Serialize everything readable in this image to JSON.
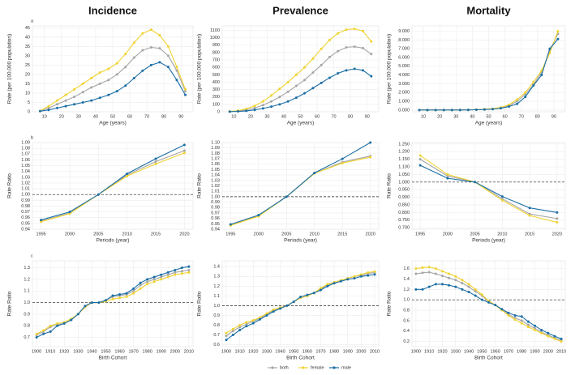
{
  "chart_data": [
    {
      "type": "line",
      "title": "Incidence",
      "panel_label": "a",
      "xlabel": "Age (years)",
      "ylabel": "Rate (per 100,000 population)",
      "x": [
        7.5,
        12.5,
        17.5,
        22.5,
        27.5,
        32.5,
        37.5,
        42.5,
        47.5,
        52.5,
        57.5,
        62.5,
        67.5,
        72.5,
        77.5,
        82.5,
        87.5,
        92.5
      ],
      "xlim": [
        3,
        97
      ],
      "xticks": [
        10,
        20,
        30,
        40,
        50,
        60,
        70,
        80,
        90
      ],
      "ylim": [
        0,
        46
      ],
      "yticks": [
        0,
        5,
        10,
        15,
        20,
        25,
        30,
        35,
        40,
        45
      ],
      "series": [
        {
          "name": "both",
          "color": "#a6a6a6",
          "values": [
            0.5,
            2,
            4,
            6,
            8,
            10.5,
            13,
            15,
            17,
            20,
            24,
            29,
            33,
            34.5,
            34,
            30,
            22,
            11
          ]
        },
        {
          "name": "female",
          "color": "#f0d332",
          "values": [
            0.5,
            3,
            6,
            9,
            12,
            15,
            18,
            21,
            23,
            26,
            31,
            37,
            42,
            44,
            41,
            35,
            24,
            12
          ]
        },
        {
          "name": "male",
          "color": "#1b6ea5",
          "values": [
            0.3,
            1,
            2,
            3,
            4,
            5,
            6,
            7.5,
            9,
            11,
            14,
            18,
            22,
            25,
            26.5,
            24,
            17,
            9
          ]
        }
      ]
    },
    {
      "type": "line",
      "title": "Prevalence",
      "xlabel": "Age (years)",
      "ylabel": "Rate (per 100,000 population)",
      "x": [
        7.5,
        12.5,
        17.5,
        22.5,
        27.5,
        32.5,
        37.5,
        42.5,
        47.5,
        52.5,
        57.5,
        62.5,
        67.5,
        72.5,
        77.5,
        82.5,
        87.5,
        92.5
      ],
      "xlim": [
        3,
        97
      ],
      "xticks": [
        10,
        20,
        30,
        40,
        50,
        60,
        70,
        80,
        90
      ],
      "ylim": [
        0,
        1160
      ],
      "yticks": [
        0,
        100,
        200,
        300,
        400,
        500,
        600,
        700,
        800,
        900,
        1000,
        1100
      ],
      "series": [
        {
          "name": "both",
          "color": "#a6a6a6",
          "values": [
            3,
            10,
            25,
            50,
            90,
            140,
            200,
            270,
            350,
            430,
            530,
            630,
            740,
            820,
            870,
            880,
            860,
            780
          ]
        },
        {
          "name": "female",
          "color": "#f0d332",
          "values": [
            5,
            15,
            40,
            80,
            140,
            220,
            310,
            400,
            500,
            600,
            720,
            850,
            970,
            1060,
            1110,
            1120,
            1090,
            950
          ]
        },
        {
          "name": "male",
          "color": "#1b6ea5",
          "values": [
            2,
            5,
            12,
            25,
            45,
            70,
            100,
            140,
            190,
            250,
            320,
            390,
            460,
            520,
            560,
            580,
            560,
            480
          ]
        }
      ]
    },
    {
      "type": "line",
      "title": "Mortality",
      "xlabel": "Age (years)",
      "ylabel": "Rate (per 100,000 population)",
      "x": [
        7.5,
        12.5,
        17.5,
        22.5,
        27.5,
        32.5,
        37.5,
        42.5,
        47.5,
        52.5,
        57.5,
        62.5,
        67.5,
        72.5,
        77.5,
        82.5,
        87.5,
        92.5
      ],
      "xlim": [
        3,
        97
      ],
      "xticks": [
        10,
        20,
        30,
        40,
        50,
        60,
        70,
        80,
        90
      ],
      "ylim": [
        -0.2,
        9.6
      ],
      "yticks": [
        {
          "value": 0,
          "label": "0.000"
        },
        {
          "value": 1,
          "label": "1.000"
        },
        {
          "value": 2,
          "label": "2.000"
        },
        {
          "value": 3,
          "label": "3.000"
        },
        {
          "value": 4,
          "label": "4.000"
        },
        {
          "value": 5,
          "label": "5.000"
        },
        {
          "value": 6,
          "label": "6.000"
        },
        {
          "value": 7,
          "label": "7.000"
        },
        {
          "value": 8,
          "label": "8.000"
        },
        {
          "value": 9,
          "label": "9.000"
        }
      ],
      "series": [
        {
          "name": "both",
          "color": "#a6a6a6",
          "values": [
            0,
            0,
            0,
            0,
            0,
            0.01,
            0.02,
            0.04,
            0.08,
            0.12,
            0.25,
            0.5,
            1,
            1.8,
            2.9,
            4.3,
            6.8,
            8.7
          ]
        },
        {
          "name": "female",
          "color": "#f0d332",
          "values": [
            0,
            0,
            0,
            0,
            0,
            0.01,
            0.02,
            0.05,
            0.1,
            0.15,
            0.3,
            0.6,
            1.2,
            2,
            3.2,
            4.5,
            6.5,
            9
          ]
        },
        {
          "name": "male",
          "color": "#1b6ea5",
          "values": [
            0,
            0,
            0,
            0,
            0,
            0,
            0.01,
            0.03,
            0.06,
            0.1,
            0.2,
            0.4,
            0.7,
            1.5,
            2.8,
            4,
            7,
            8.1
          ]
        }
      ]
    },
    {
      "type": "line",
      "panel_label": "b",
      "xlabel": "Periods (year)",
      "ylabel": "Rate Ratio",
      "hline": 1,
      "x": [
        1995,
        2000,
        2005,
        2010,
        2015,
        2020
      ],
      "xlim": [
        1993.5,
        2021.5
      ],
      "xticks": [
        1995,
        2000,
        2005,
        2010,
        2015,
        2020
      ],
      "ylim": [
        0.94,
        1.09
      ],
      "yticks": [
        0.94,
        0.95,
        0.96,
        0.97,
        0.98,
        0.99,
        {
          "value": 1,
          "label": "1.00"
        },
        1.01,
        1.02,
        1.03,
        1.04,
        1.05,
        1.06,
        1.07,
        1.08,
        1.09
      ],
      "series": [
        {
          "name": "both",
          "color": "#a6a6a6",
          "values": [
            0.954,
            0.968,
            1,
            1.034,
            1.057,
            1.076
          ]
        },
        {
          "name": "female",
          "color": "#f0d332",
          "values": [
            0.953,
            0.967,
            1,
            1.032,
            1.053,
            1.072
          ]
        },
        {
          "name": "male",
          "color": "#1b6ea5",
          "values": [
            0.956,
            0.97,
            1,
            1.036,
            1.062,
            1.086
          ]
        }
      ]
    },
    {
      "type": "line",
      "xlabel": "Periods (year)",
      "ylabel": "Rate Ratio",
      "hline": 1,
      "x": [
        1995,
        2000,
        2005,
        2010,
        2015,
        2020
      ],
      "xlim": [
        1993.5,
        2021.5
      ],
      "xticks": [
        1995,
        2000,
        2005,
        2010,
        2015,
        2020
      ],
      "ylim": [
        0.94,
        1.1
      ],
      "yticks": [
        0.94,
        0.95,
        0.96,
        0.97,
        0.98,
        0.99,
        {
          "value": 1,
          "label": "1.00"
        },
        1.01,
        1.02,
        1.03,
        1.04,
        1.05,
        1.06,
        1.07,
        1.08,
        1.09,
        {
          "value": 1.1,
          "label": "1.10"
        }
      ],
      "series": [
        {
          "name": "both",
          "color": "#a6a6a6",
          "values": [
            0.948,
            0.965,
            1,
            1.043,
            1.064,
            1.075
          ]
        },
        {
          "name": "female",
          "color": "#f0d332",
          "values": [
            0.947,
            0.964,
            1,
            1.043,
            1.062,
            1.073
          ]
        },
        {
          "name": "male",
          "color": "#1b6ea5",
          "values": [
            0.949,
            0.966,
            1,
            1.044,
            1.07,
            1.1
          ]
        }
      ]
    },
    {
      "type": "line",
      "xlabel": "Periods (year)",
      "ylabel": "Rate Ratio",
      "hline": 1,
      "x": [
        1995,
        2000,
        2005,
        2010,
        2015,
        2020
      ],
      "xlim": [
        1993.5,
        2021.5
      ],
      "xticks": [
        1995,
        2000,
        2005,
        2010,
        2015,
        2020
      ],
      "ylim": [
        0.69,
        1.26
      ],
      "yticks": [
        {
          "value": 0.7,
          "label": "0.700"
        },
        {
          "value": 0.75,
          "label": "0.750"
        },
        {
          "value": 0.8,
          "label": "0.800"
        },
        {
          "value": 0.85,
          "label": "0.850"
        },
        {
          "value": 0.9,
          "label": "0.900"
        },
        {
          "value": 0.95,
          "label": "0.950"
        },
        {
          "value": 1,
          "label": "1.000"
        },
        {
          "value": 1.05,
          "label": "1.050"
        },
        {
          "value": 1.1,
          "label": "1.100"
        },
        {
          "value": 1.15,
          "label": "1.150"
        },
        {
          "value": 1.2,
          "label": "1.200"
        },
        {
          "value": 1.25,
          "label": "1.250"
        }
      ],
      "series": [
        {
          "name": "both",
          "color": "#a6a6a6",
          "values": [
            1.15,
            1.04,
            1,
            0.89,
            0.79,
            0.76
          ]
        },
        {
          "name": "female",
          "color": "#f0d332",
          "values": [
            1.175,
            1.05,
            1,
            0.88,
            0.78,
            0.735
          ]
        },
        {
          "name": "male",
          "color": "#1b6ea5",
          "values": [
            1.11,
            1.025,
            1,
            0.905,
            0.83,
            0.8
          ]
        }
      ]
    },
    {
      "type": "line",
      "panel_label": "c",
      "xlabel": "Birth Cohort",
      "ylabel": "Rate Ratio",
      "hline": 1,
      "x": [
        1900,
        1905,
        1910,
        1915,
        1920,
        1925,
        1930,
        1935,
        1940,
        1945,
        1950,
        1955,
        1960,
        1965,
        1970,
        1975,
        1980,
        1985,
        1990,
        1995,
        2000,
        2005,
        2010
      ],
      "xlim": [
        1897,
        2013
      ],
      "xticks": [
        1900,
        1910,
        1920,
        1930,
        1940,
        1950,
        1960,
        1970,
        1980,
        1990,
        2000,
        2010
      ],
      "ylim": [
        0.62,
        1.36
      ],
      "yticks": [
        0.7,
        0.8,
        0.9,
        {
          "value": 1,
          "label": "1.0"
        },
        1.1,
        1.2,
        1.3
      ],
      "series": [
        {
          "name": "both",
          "color": "#a6a6a6",
          "values": [
            0.72,
            0.75,
            0.79,
            0.81,
            0.82,
            0.85,
            0.9,
            0.97,
            1,
            1,
            1.02,
            1.05,
            1.06,
            1.07,
            1.1,
            1.15,
            1.18,
            1.2,
            1.22,
            1.24,
            1.26,
            1.27,
            1.28
          ]
        },
        {
          "name": "female",
          "color": "#f0d332",
          "values": [
            0.73,
            0.76,
            0.8,
            0.82,
            0.83,
            0.86,
            0.9,
            0.96,
            1,
            1,
            1.01,
            1.03,
            1.04,
            1.05,
            1.08,
            1.12,
            1.16,
            1.18,
            1.2,
            1.22,
            1.24,
            1.25,
            1.26
          ]
        },
        {
          "name": "male",
          "color": "#1b6ea5",
          "values": [
            0.7,
            0.73,
            0.75,
            0.8,
            0.82,
            0.85,
            0.9,
            0.97,
            1,
            1,
            1.02,
            1.06,
            1.07,
            1.08,
            1.12,
            1.17,
            1.2,
            1.22,
            1.24,
            1.26,
            1.28,
            1.3,
            1.31
          ]
        }
      ]
    },
    {
      "type": "line",
      "xlabel": "Birth Cohort",
      "ylabel": "Rate Ratio",
      "hline": 1,
      "x": [
        1900,
        1905,
        1910,
        1915,
        1920,
        1925,
        1930,
        1935,
        1940,
        1945,
        1950,
        1955,
        1960,
        1965,
        1970,
        1975,
        1980,
        1985,
        1990,
        1995,
        2000,
        2005,
        2010
      ],
      "xlim": [
        1897,
        2013
      ],
      "xticks": [
        1900,
        1910,
        1920,
        1930,
        1940,
        1950,
        1960,
        1970,
        1980,
        1990,
        2000,
        2010
      ],
      "ylim": [
        0.58,
        1.46
      ],
      "yticks": [
        0.6,
        0.7,
        0.8,
        0.9,
        {
          "value": 1,
          "label": "1.0"
        },
        1.1,
        1.2,
        1.3,
        1.4
      ],
      "series": [
        {
          "name": "both",
          "color": "#a6a6a6",
          "values": [
            0.69,
            0.74,
            0.78,
            0.81,
            0.84,
            0.87,
            0.91,
            0.95,
            0.98,
            1,
            1.04,
            1.08,
            1.1,
            1.13,
            1.17,
            1.21,
            1.24,
            1.26,
            1.28,
            1.3,
            1.31,
            1.33,
            1.34
          ]
        },
        {
          "name": "female",
          "color": "#f0d332",
          "values": [
            0.72,
            0.76,
            0.8,
            0.83,
            0.85,
            0.88,
            0.92,
            0.96,
            0.98,
            1,
            1.04,
            1.08,
            1.1,
            1.13,
            1.18,
            1.22,
            1.24,
            1.26,
            1.28,
            1.3,
            1.32,
            1.34,
            1.35
          ]
        },
        {
          "name": "male",
          "color": "#1b6ea5",
          "values": [
            0.65,
            0.7,
            0.75,
            0.79,
            0.82,
            0.86,
            0.9,
            0.94,
            0.97,
            1,
            1.04,
            1.09,
            1.11,
            1.13,
            1.16,
            1.2,
            1.23,
            1.25,
            1.27,
            1.28,
            1.3,
            1.31,
            1.32
          ]
        }
      ]
    },
    {
      "type": "line",
      "xlabel": "Birth Cohort",
      "ylabel": "Rate Ratio",
      "hline": 1,
      "x": [
        1900,
        1905,
        1910,
        1915,
        1920,
        1925,
        1930,
        1935,
        1940,
        1945,
        1950,
        1955,
        1960,
        1965,
        1970,
        1975,
        1980,
        1985,
        1990,
        1995,
        2000,
        2005,
        2010
      ],
      "xlim": [
        1897,
        2013
      ],
      "xticks": [
        1900,
        1910,
        1920,
        1930,
        1940,
        1950,
        1960,
        1970,
        1980,
        1990,
        2000,
        2010
      ],
      "ylim": [
        0.1,
        1.75
      ],
      "yticks": [
        0.2,
        0.4,
        0.6,
        0.8,
        {
          "value": 1,
          "label": "1.0"
        },
        1.2,
        1.4,
        1.6
      ],
      "series": [
        {
          "name": "both",
          "color": "#a6a6a6",
          "values": [
            1.5,
            1.52,
            1.53,
            1.5,
            1.46,
            1.42,
            1.38,
            1.32,
            1.25,
            1.16,
            1.08,
            0.97,
            0.9,
            0.81,
            0.72,
            0.65,
            0.6,
            0.52,
            0.45,
            0.38,
            0.32,
            0.27,
            0.22
          ]
        },
        {
          "name": "female",
          "color": "#f0d332",
          "values": [
            1.6,
            1.62,
            1.63,
            1.6,
            1.55,
            1.5,
            1.45,
            1.38,
            1.3,
            1.2,
            1.1,
            0.98,
            0.9,
            0.8,
            0.7,
            0.62,
            0.55,
            0.48,
            0.42,
            0.36,
            0.3,
            0.25,
            0.2
          ]
        },
        {
          "name": "male",
          "color": "#1b6ea5",
          "values": [
            1.2,
            1.2,
            1.25,
            1.3,
            1.3,
            1.28,
            1.25,
            1.2,
            1.15,
            1.08,
            1,
            0.95,
            0.9,
            0.82,
            0.75,
            0.7,
            0.68,
            0.58,
            0.5,
            0.42,
            0.36,
            0.3,
            0.25
          ]
        }
      ]
    }
  ]
}
